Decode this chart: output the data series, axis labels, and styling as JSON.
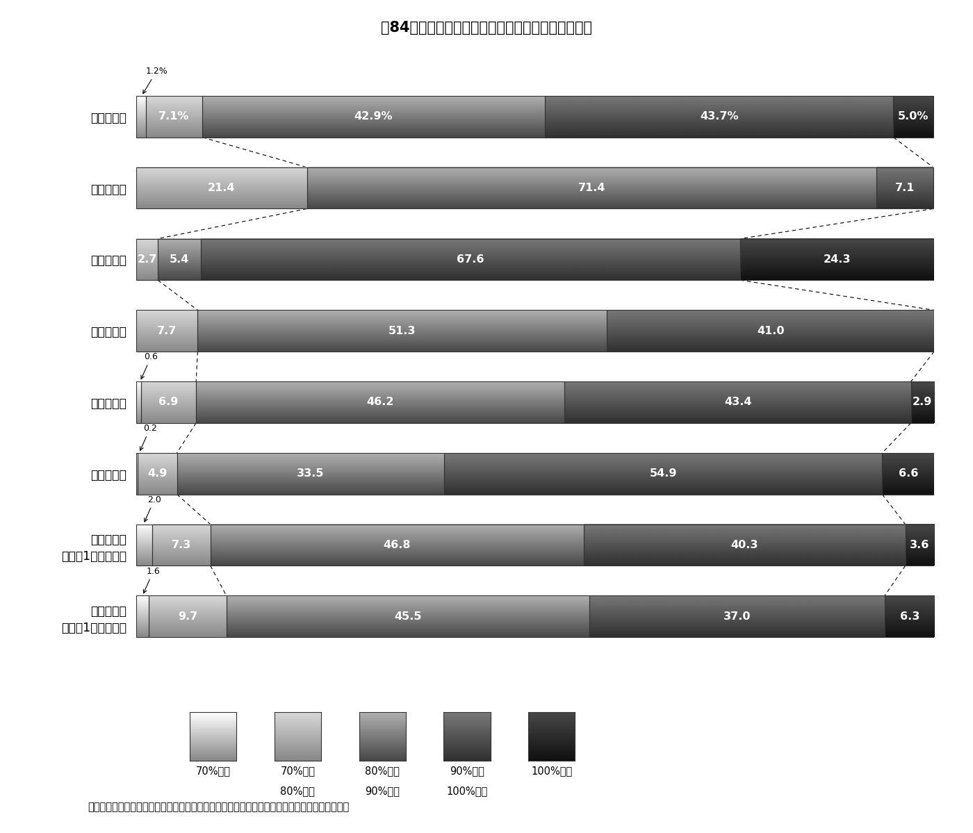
{
  "title": "第84図　団体規模別経常収支比率の状況（構成比）",
  "note": "（注）　「市町村合計」は、大都市、中核市、特例市、中都市、小都市及び町村の合計である。",
  "cat_labels": [
    "市町村合計",
    "大　都　市",
    "中　核　市",
    "特　例　市",
    "中　都　市",
    "小　都　市",
    "町　　　村\n〔人口1万人以上〕",
    "町　　　村\n〔人口1万人未満〕"
  ],
  "segments": [
    [
      1.2,
      7.1,
      42.9,
      43.7,
      5.0
    ],
    [
      0.0,
      21.4,
      71.4,
      7.1,
      0.0
    ],
    [
      0.0,
      2.7,
      5.4,
      67.6,
      24.3
    ],
    [
      0.0,
      7.7,
      51.3,
      41.0,
      0.0
    ],
    [
      0.6,
      6.9,
      46.2,
      43.4,
      2.9
    ],
    [
      0.2,
      4.9,
      33.5,
      54.9,
      6.6
    ],
    [
      2.0,
      7.3,
      46.8,
      40.3,
      3.6
    ],
    [
      1.6,
      9.7,
      45.5,
      37.0,
      6.3
    ]
  ],
  "segment_labels": [
    [
      "",
      "7.1%",
      "42.9%",
      "43.7%",
      "5.0%"
    ],
    [
      "",
      "21.4",
      "71.4",
      "7.1",
      ""
    ],
    [
      "",
      "2.7",
      "5.4",
      "67.6",
      "24.3"
    ],
    [
      "",
      "7.7",
      "51.3",
      "41.0",
      ""
    ],
    [
      "",
      "6.9",
      "46.2",
      "43.4",
      "2.9"
    ],
    [
      "",
      "4.9",
      "33.5",
      "54.9",
      "6.6"
    ],
    [
      "",
      "7.3",
      "46.8",
      "40.3",
      "3.6"
    ],
    [
      "",
      "9.7",
      "45.5",
      "37.0",
      "6.3"
    ]
  ],
  "above_annotations": [
    "1.2%",
    null,
    null,
    null,
    "0.6",
    "0.2",
    "2.0",
    "1.6"
  ],
  "seg_colors_top": [
    "#ffffff",
    "#d8d8d8",
    "#b0b0b0",
    "#787878",
    "#484848"
  ],
  "seg_colors_bot": [
    "#888888",
    "#888888",
    "#484848",
    "#303030",
    "#101010"
  ],
  "legend_labels_line1": [
    "70%未満",
    "70%以上",
    "80%以上",
    "90%以上",
    "100%以上"
  ],
  "legend_labels_line2": [
    "",
    "80%未満",
    "90%未満",
    "100%未満",
    ""
  ]
}
